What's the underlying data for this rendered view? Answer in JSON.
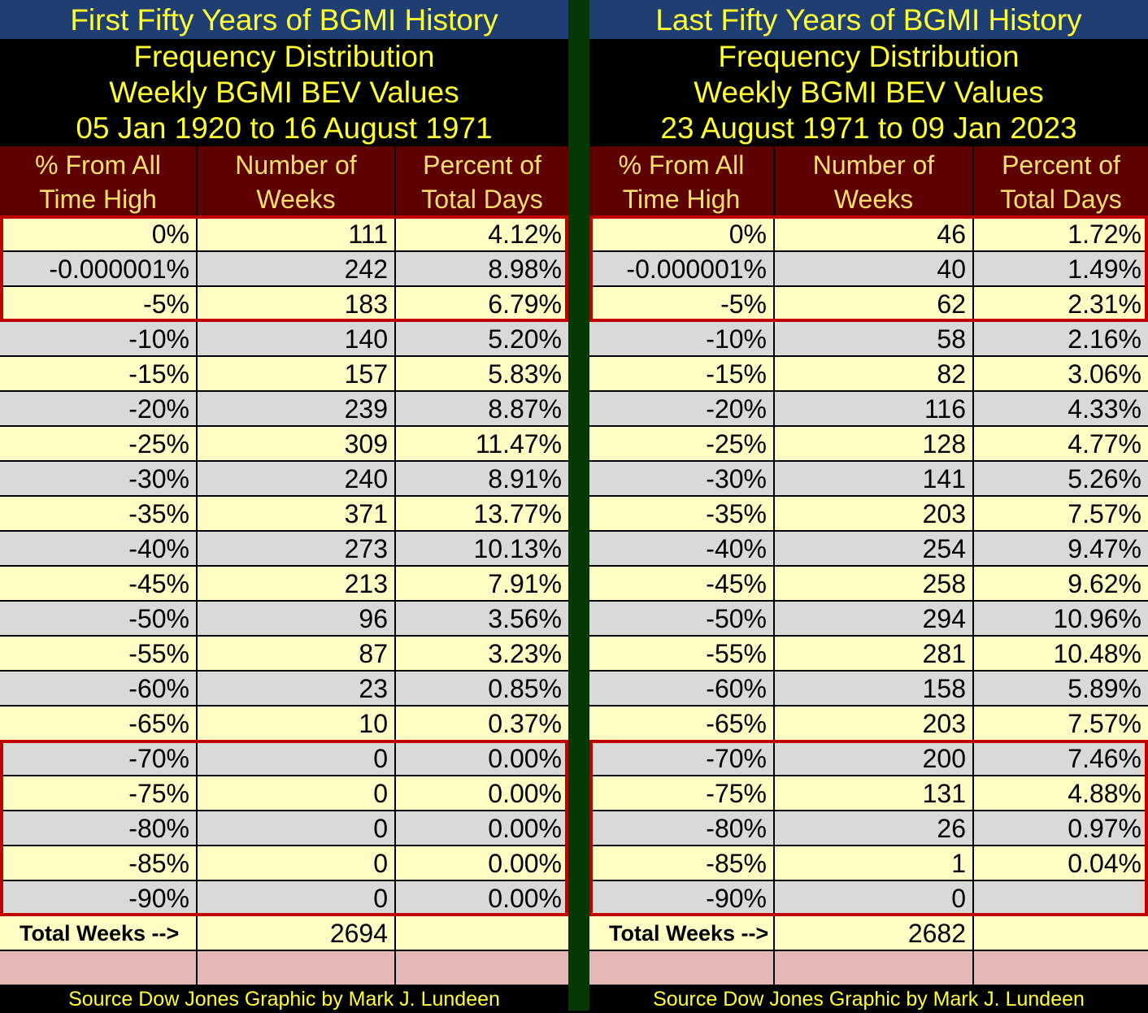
{
  "chart_data": {
    "type": "table",
    "tables": [
      {
        "id": "left",
        "banner": "First Fifty Years of BGMI History",
        "subtitle_lines": [
          "Frequency Distribution",
          "Weekly BGMI BEV Values",
          "05 Jan 1920 to 16 August 1971"
        ],
        "columns": [
          [
            "% From All",
            "Time High"
          ],
          [
            "Number of",
            "Weeks"
          ],
          [
            "Percent of",
            "Total Days"
          ]
        ],
        "rows": [
          [
            "0%",
            "111",
            "4.12%"
          ],
          [
            "-0.000001%",
            "242",
            "8.98%"
          ],
          [
            "-5%",
            "183",
            "6.79%"
          ],
          [
            "-10%",
            "140",
            "5.20%"
          ],
          [
            "-15%",
            "157",
            "5.83%"
          ],
          [
            "-20%",
            "239",
            "8.87%"
          ],
          [
            "-25%",
            "309",
            "11.47%"
          ],
          [
            "-30%",
            "240",
            "8.91%"
          ],
          [
            "-35%",
            "371",
            "13.77%"
          ],
          [
            "-40%",
            "273",
            "10.13%"
          ],
          [
            "-45%",
            "213",
            "7.91%"
          ],
          [
            "-50%",
            "96",
            "3.56%"
          ],
          [
            "-55%",
            "87",
            "3.23%"
          ],
          [
            "-60%",
            "23",
            "0.85%"
          ],
          [
            "-65%",
            "10",
            "0.37%"
          ],
          [
            "-70%",
            "0",
            "0.00%"
          ],
          [
            "-75%",
            "0",
            "0.00%"
          ],
          [
            "-80%",
            "0",
            "0.00%"
          ],
          [
            "-85%",
            "0",
            "0.00%"
          ],
          [
            "-90%",
            "0",
            "0.00%"
          ]
        ],
        "total_label": "Total Weeks -->",
        "total_value": "2694",
        "source": "Source Dow Jones   Graphic by Mark J. Lundeen"
      },
      {
        "id": "right",
        "banner": "Last Fifty Years of BGMI History",
        "subtitle_lines": [
          "Frequency Distribution",
          "Weekly BGMI BEV Values",
          "23 August 1971 to 09 Jan 2023"
        ],
        "columns": [
          [
            "% From All",
            "Time High"
          ],
          [
            "Number of",
            "Weeks"
          ],
          [
            "Percent of",
            "Total Days"
          ]
        ],
        "rows": [
          [
            "0%",
            "46",
            "1.72%"
          ],
          [
            "-0.000001%",
            "40",
            "1.49%"
          ],
          [
            "-5%",
            "62",
            "2.31%"
          ],
          [
            "-10%",
            "58",
            "2.16%"
          ],
          [
            "-15%",
            "82",
            "3.06%"
          ],
          [
            "-20%",
            "116",
            "4.33%"
          ],
          [
            "-25%",
            "128",
            "4.77%"
          ],
          [
            "-30%",
            "141",
            "5.26%"
          ],
          [
            "-35%",
            "203",
            "7.57%"
          ],
          [
            "-40%",
            "254",
            "9.47%"
          ],
          [
            "-45%",
            "258",
            "9.62%"
          ],
          [
            "-50%",
            "294",
            "10.96%"
          ],
          [
            "-55%",
            "281",
            "10.48%"
          ],
          [
            "-60%",
            "158",
            "5.89%"
          ],
          [
            "-65%",
            "203",
            "7.57%"
          ],
          [
            "-70%",
            "200",
            "7.46%"
          ],
          [
            "-75%",
            "131",
            "4.88%"
          ],
          [
            "-80%",
            "26",
            "0.97%"
          ],
          [
            "-85%",
            "1",
            "0.04%"
          ],
          [
            "-90%",
            "0",
            ""
          ]
        ],
        "total_label": "Total Weeks -->",
        "total_value": "2682",
        "source": "Source Dow Jones   Graphic by Mark J. Lundeen"
      }
    ],
    "highlighted_groups": [
      [
        0,
        2
      ],
      [
        15,
        19
      ]
    ]
  },
  "colors": {
    "banner_bg": "#1f3f73",
    "title_text": "#ffff33",
    "header_bg": "#5e0000",
    "header_text": "#ffe06b",
    "row_yellow": "#fffdc4",
    "row_gray": "#d9d9d9",
    "highlight_border": "#c00000",
    "footer_pink": "#e6b7b7",
    "divider": "#063806"
  }
}
